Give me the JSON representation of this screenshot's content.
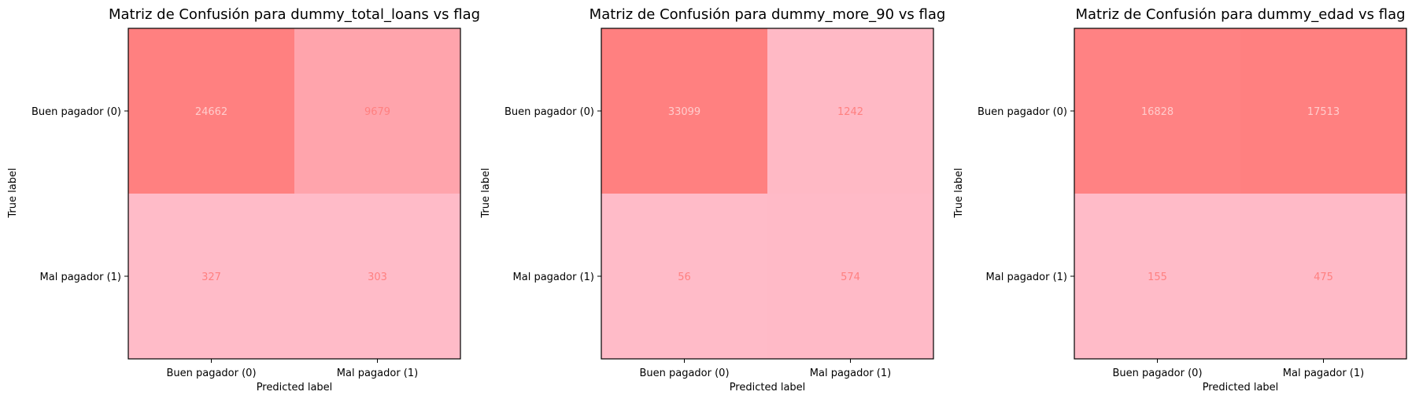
{
  "chart_data": [
    {
      "type": "heatmap",
      "title": "Matriz de Confusión para dummy_total_loans vs flag",
      "xlabel": "Predicted label",
      "ylabel": "True label",
      "x_categories": [
        "Buen pagador (0)",
        "Mal pagador (1)"
      ],
      "y_categories": [
        "Buen pagador (0)",
        "Mal pagador (1)"
      ],
      "values": [
        [
          24662,
          9679
        ],
        [
          327,
          303
        ]
      ]
    },
    {
      "type": "heatmap",
      "title": "Matriz de Confusión para dummy_more_90 vs flag",
      "xlabel": "Predicted label",
      "ylabel": "True label",
      "x_categories": [
        "Buen pagador (0)",
        "Mal pagador (1)"
      ],
      "y_categories": [
        "Buen pagador (0)",
        "Mal pagador (1)"
      ],
      "values": [
        [
          33099,
          1242
        ],
        [
          56,
          574
        ]
      ]
    },
    {
      "type": "heatmap",
      "title": "Matriz de Confusión para dummy_edad vs flag",
      "xlabel": "Predicted label",
      "ylabel": "True label",
      "x_categories": [
        "Buen pagador (0)",
        "Mal pagador (1)"
      ],
      "y_categories": [
        "Buen pagador (0)",
        "Mal pagador (1)"
      ],
      "values": [
        [
          16828,
          17513
        ],
        [
          155,
          475
        ]
      ]
    }
  ],
  "colors": {
    "colormap_low": "#ffbbc8",
    "colormap_high": "#ff8080",
    "text_on_dark": "#ffcccc",
    "text_on_light": "#ff8080",
    "frame": "#000000"
  }
}
